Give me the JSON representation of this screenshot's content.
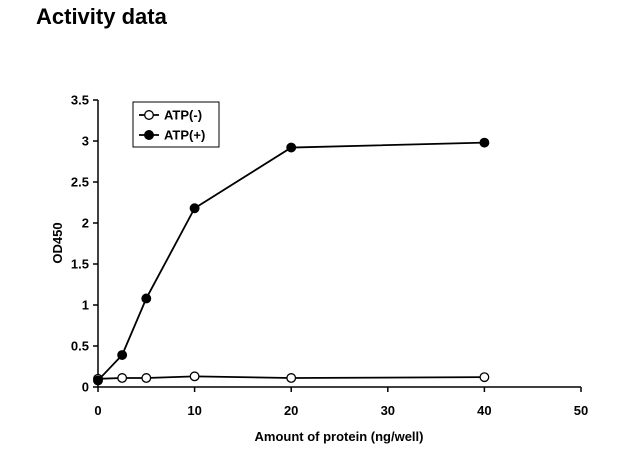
{
  "page": {
    "title": "Activity data"
  },
  "chart_data": {
    "type": "line",
    "title": "",
    "xlabel": "Amount of protein (ng/well)",
    "ylabel": "OD450",
    "xlim": [
      0,
      50
    ],
    "ylim": [
      0,
      3.5
    ],
    "xticks": [
      0,
      10,
      20,
      30,
      40,
      50
    ],
    "yticks": [
      0,
      0.5,
      1,
      1.5,
      2,
      2.5,
      3,
      3.5
    ],
    "grid": false,
    "legend_position": "top-left",
    "series": [
      {
        "name": "ATP(-)",
        "marker": "open-circle",
        "color": "#000000",
        "x": [
          0,
          2.5,
          5,
          10,
          20,
          40
        ],
        "y": [
          0.1,
          0.11,
          0.11,
          0.13,
          0.11,
          0.12
        ]
      },
      {
        "name": "ATP(+)",
        "marker": "filled-circle",
        "color": "#000000",
        "x": [
          0,
          2.5,
          5,
          10,
          20,
          40
        ],
        "y": [
          0.08,
          0.39,
          1.08,
          2.18,
          2.92,
          2.98
        ]
      }
    ]
  }
}
